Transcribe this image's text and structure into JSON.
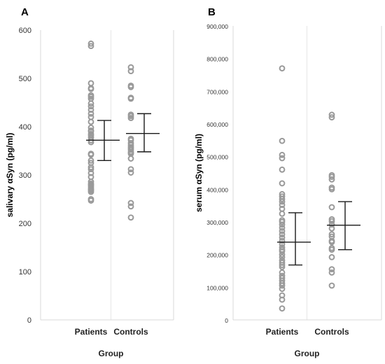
{
  "chart_data": [
    {
      "panel": "A",
      "type": "scatter",
      "categories": [
        "Patients",
        "Controls"
      ],
      "xlabel": "Group",
      "ylabel": "salivary αSyn  (pg/ml)",
      "ylim": [
        0,
        600
      ],
      "yticks": [
        0,
        100,
        200,
        300,
        400,
        500,
        600
      ],
      "ytick_labels": [
        "0",
        "100",
        "200",
        "300",
        "400",
        "500",
        "600"
      ],
      "grid": "vertical",
      "marker_color": "#9a9a9a",
      "series": [
        {
          "category": "Patients",
          "points": [
            572,
            567,
            490,
            480,
            478,
            465,
            462,
            458,
            448,
            442,
            435,
            427,
            420,
            410,
            398,
            392,
            390,
            385,
            382,
            378,
            372,
            368,
            344,
            342,
            330,
            325,
            316,
            312,
            304,
            296,
            286,
            282,
            280,
            278,
            275,
            272,
            270,
            268,
            265,
            250,
            247
          ],
          "mean": 372,
          "error_low": 330,
          "error_high": 413
        },
        {
          "category": "Controls",
          "points": [
            523,
            515,
            485,
            482,
            460,
            458,
            425,
            422,
            418,
            375,
            372,
            366,
            362,
            358,
            355,
            352,
            348,
            346,
            344,
            334,
            312,
            305,
            242,
            235,
            212
          ],
          "mean": 386,
          "error_low": 348,
          "error_high": 427
        }
      ]
    },
    {
      "panel": "B",
      "type": "scatter",
      "categories": [
        "Patients",
        "Controls"
      ],
      "xlabel": "Group",
      "ylabel": "serum αSyn  (pg/ml)",
      "ylim": [
        0,
        900000
      ],
      "yticks": [
        0,
        100000,
        200000,
        300000,
        400000,
        500000,
        600000,
        700000,
        800000,
        900000
      ],
      "ytick_labels": [
        "0",
        "100,000",
        "200,000",
        "300,000",
        "400,000",
        "500,000",
        "600,000",
        "700,000",
        "800,000",
        "900,000"
      ],
      "grid": "vertical",
      "marker_color": "#9a9a9a",
      "series": [
        {
          "category": "Patients",
          "points": [
            770000,
            548000,
            505000,
            495000,
            460000,
            418000,
            385000,
            378000,
            370000,
            362000,
            352000,
            340000,
            325000,
            305000,
            300000,
            292000,
            282000,
            272000,
            262000,
            252000,
            242000,
            232000,
            222000,
            215000,
            210000,
            200000,
            192000,
            182000,
            175000,
            168000,
            162000,
            145000,
            135000,
            128000,
            120000,
            112000,
            105000,
            95000,
            75000,
            62000,
            35000
          ],
          "mean": 238000,
          "error_low": 168000,
          "error_high": 328000
        },
        {
          "category": "Controls",
          "points": [
            628000,
            620000,
            443000,
            438000,
            430000,
            405000,
            400000,
            345000,
            308000,
            302000,
            292000,
            280000,
            262000,
            255000,
            242000,
            238000,
            220000,
            215000,
            192000,
            155000,
            145000,
            105000
          ],
          "mean": 290000,
          "error_low": 215000,
          "error_high": 362000
        }
      ]
    }
  ]
}
